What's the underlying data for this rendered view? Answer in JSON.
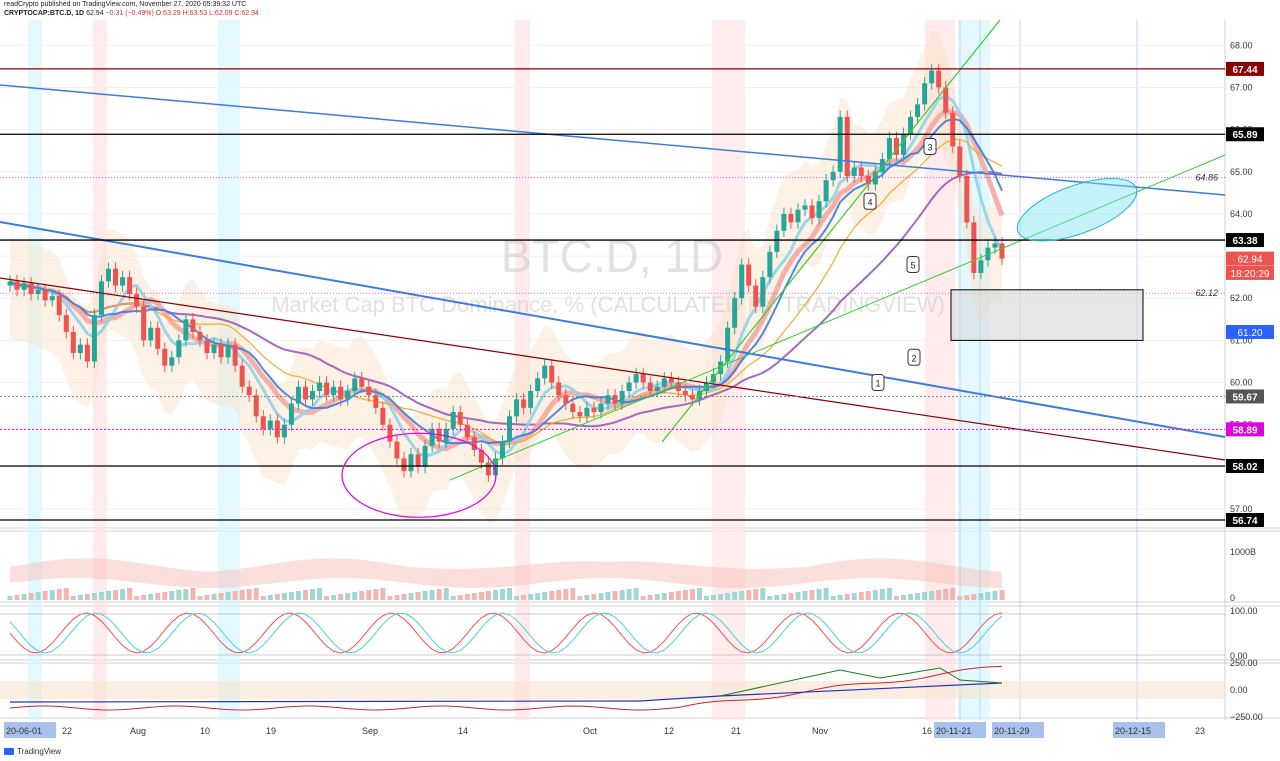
{
  "header": {
    "publisher_line": "readCrypto published on TradingView.com, November 27, 2020 05:39:32 UTC",
    "symbol": "CRYPTOCAP:BTC.D, 1D",
    "last": "62.94",
    "change": "−0.31 (−0.49%)",
    "ohlc": "O:63.29 H:63.53 L:62.09 C:62.94"
  },
  "watermark": {
    "title": "BTC.D, 1D",
    "subtitle": "Market Cap BTC Dominance, % (CALCULATED BY TRADINGVIEW)"
  },
  "colors": {
    "bull": "#26a69a",
    "bear": "#ef5350",
    "blue_line": "#3d7be0",
    "dark_red_line": "#8b0000",
    "green_line": "#32cd32",
    "magenta": "#e100e1",
    "orange": "#f5a623",
    "purple": "#9b59b6"
  },
  "chart_data": {
    "type": "candlestick",
    "y_range": [
      56.55,
      68.6
    ],
    "price_axis_ticks": [
      "68.00",
      "67.00",
      "66.00",
      "65.00",
      "64.00",
      "63.00",
      "62.00",
      "61.00",
      "60.00",
      "59.00",
      "58.00",
      "57.00"
    ],
    "x_axis_labels": [
      "20-06-01",
      "22",
      "Aug",
      "10",
      "19",
      "Sep",
      "14",
      "Oct",
      "12",
      "21",
      "Nov",
      "16",
      "20-11-21",
      "20-11-29",
      "20-12-15",
      "23"
    ],
    "highlighted_x_labels": [
      "20-06-01",
      "20-11-21",
      "20-11-29",
      "20-12-15"
    ],
    "horizontal_levels": [
      {
        "label": "67.44",
        "value": 67.44,
        "color": "#8b0000",
        "style": "solid"
      },
      {
        "label": "65.89",
        "value": 65.89,
        "color": "#000000",
        "style": "solid"
      },
      {
        "label": "63.38",
        "value": 63.38,
        "color": "#000000",
        "style": "solid"
      },
      {
        "label": "59.67",
        "value": 59.67,
        "color": "#888888",
        "style": "dotted"
      },
      {
        "label": "58.89",
        "value": 58.89,
        "color": "#e100e1",
        "style": "dotted"
      },
      {
        "label": "58.02",
        "value": 58.02,
        "color": "#000000",
        "style": "solid"
      },
      {
        "label": "56.74",
        "value": 56.74,
        "color": "#000000",
        "style": "solid"
      }
    ],
    "line_labels": [
      {
        "label": "64.86",
        "value": 64.86
      },
      {
        "label": "62.12",
        "value": 62.12
      }
    ],
    "price_badges": [
      {
        "label": "62.94",
        "value": 62.94,
        "color": "#ef5350"
      },
      {
        "label": "18:20:29",
        "value": 62.6,
        "color": "#ef5350"
      },
      {
        "label": "61.20",
        "value": 61.2,
        "color": "#2962ff"
      }
    ],
    "wave_labels": [
      "1",
      "2",
      "3",
      "4",
      "5"
    ],
    "volume_panel": {
      "tick_labels": [
        "1000B",
        "0"
      ]
    },
    "oscillator_panel": {
      "tick_labels": [
        "100.00",
        "0.00"
      ]
    },
    "momentum_panel": {
      "tick_labels": [
        "250.00",
        "0.00",
        "−250.00"
      ]
    },
    "candles": [
      [
        62.3,
        62.4
      ],
      [
        62.4,
        62.2
      ],
      [
        62.2,
        62.35
      ],
      [
        62.35,
        62.1
      ],
      [
        62.1,
        62.2
      ],
      [
        62.2,
        61.95
      ],
      [
        61.95,
        62.05
      ],
      [
        62.05,
        61.6
      ],
      [
        61.6,
        61.2
      ],
      [
        61.2,
        60.7
      ],
      [
        60.7,
        60.9
      ],
      [
        60.9,
        60.5
      ],
      [
        60.5,
        61.6
      ],
      [
        61.6,
        62.4
      ],
      [
        62.4,
        62.7
      ],
      [
        62.7,
        62.3
      ],
      [
        62.3,
        62.5
      ],
      [
        62.5,
        62.1
      ],
      [
        62.1,
        61.8
      ],
      [
        61.8,
        61.0
      ],
      [
        61.0,
        61.3
      ],
      [
        61.3,
        60.8
      ],
      [
        60.8,
        60.4
      ],
      [
        60.4,
        60.6
      ],
      [
        60.6,
        61.0
      ],
      [
        61.0,
        61.5
      ],
      [
        61.5,
        61.2
      ],
      [
        61.2,
        61.0
      ],
      [
        61.0,
        60.7
      ],
      [
        60.7,
        60.9
      ],
      [
        60.9,
        60.6
      ],
      [
        60.6,
        60.9
      ],
      [
        60.9,
        60.4
      ],
      [
        60.4,
        59.9
      ],
      [
        59.9,
        59.7
      ],
      [
        59.7,
        59.2
      ],
      [
        59.2,
        58.9
      ],
      [
        58.9,
        59.1
      ],
      [
        59.1,
        58.7
      ],
      [
        58.7,
        59.0
      ],
      [
        59.0,
        59.5
      ],
      [
        59.5,
        59.9
      ],
      [
        59.9,
        59.6
      ],
      [
        59.6,
        59.8
      ],
      [
        59.8,
        60.0
      ],
      [
        60.0,
        59.7
      ],
      [
        59.7,
        59.9
      ],
      [
        59.9,
        59.6
      ],
      [
        59.6,
        59.8
      ],
      [
        59.8,
        60.1
      ],
      [
        60.1,
        59.9
      ],
      [
        59.9,
        59.7
      ],
      [
        59.7,
        59.4
      ],
      [
        59.4,
        59.0
      ],
      [
        59.0,
        58.6
      ],
      [
        58.6,
        58.2
      ],
      [
        58.2,
        57.9
      ],
      [
        57.9,
        58.3
      ],
      [
        58.3,
        58.0
      ],
      [
        58.0,
        58.5
      ],
      [
        58.5,
        58.9
      ],
      [
        58.9,
        58.6
      ],
      [
        58.6,
        58.9
      ],
      [
        58.9,
        59.3
      ],
      [
        59.3,
        59.0
      ],
      [
        59.0,
        58.7
      ],
      [
        58.7,
        58.4
      ],
      [
        58.4,
        58.1
      ],
      [
        58.1,
        57.8
      ],
      [
        57.8,
        58.2
      ],
      [
        58.2,
        58.6
      ],
      [
        58.6,
        59.2
      ],
      [
        59.2,
        59.6
      ],
      [
        59.6,
        59.4
      ],
      [
        59.4,
        59.8
      ],
      [
        59.8,
        60.1
      ],
      [
        60.1,
        60.4
      ],
      [
        60.4,
        60.0
      ],
      [
        60.0,
        59.7
      ],
      [
        59.7,
        59.5
      ],
      [
        59.5,
        59.3
      ],
      [
        59.3,
        59.2
      ],
      [
        59.2,
        59.4
      ],
      [
        59.4,
        59.3
      ],
      [
        59.3,
        59.5
      ],
      [
        59.5,
        59.7
      ],
      [
        59.7,
        59.5
      ],
      [
        59.5,
        59.8
      ],
      [
        59.8,
        60.0
      ],
      [
        60.0,
        60.2
      ],
      [
        60.2,
        60.0
      ],
      [
        60.0,
        59.8
      ],
      [
        59.8,
        59.9
      ],
      [
        59.9,
        60.1
      ],
      [
        60.1,
        60.0
      ],
      [
        60.0,
        59.8
      ],
      [
        59.8,
        59.7
      ],
      [
        59.7,
        59.6
      ],
      [
        59.6,
        59.8
      ],
      [
        59.8,
        60.0
      ],
      [
        60.0,
        60.2
      ],
      [
        60.2,
        60.5
      ],
      [
        60.5,
        61.3
      ],
      [
        61.3,
        62.0
      ],
      [
        62.0,
        62.8
      ],
      [
        62.8,
        62.3
      ],
      [
        62.3,
        61.8
      ],
      [
        61.8,
        62.5
      ],
      [
        62.5,
        63.1
      ],
      [
        63.1,
        63.6
      ],
      [
        63.6,
        64.0
      ],
      [
        64.0,
        63.8
      ],
      [
        63.8,
        64.1
      ],
      [
        64.1,
        64.2
      ],
      [
        64.2,
        63.9
      ],
      [
        63.9,
        64.3
      ],
      [
        64.3,
        64.8
      ],
      [
        64.8,
        65.0
      ],
      [
        65.0,
        66.3
      ],
      [
        66.3,
        64.9
      ],
      [
        64.9,
        65.1
      ],
      [
        65.1,
        64.9
      ],
      [
        64.9,
        64.7
      ],
      [
        64.7,
        65.0
      ],
      [
        65.0,
        65.3
      ],
      [
        65.3,
        65.8
      ],
      [
        65.8,
        65.4
      ],
      [
        65.4,
        65.9
      ],
      [
        65.9,
        66.3
      ],
      [
        66.3,
        66.6
      ],
      [
        66.6,
        67.1
      ],
      [
        67.1,
        67.4
      ],
      [
        67.4,
        67.0
      ],
      [
        67.0,
        66.4
      ],
      [
        66.4,
        65.6
      ],
      [
        65.6,
        64.9
      ],
      [
        64.9,
        63.8
      ],
      [
        63.8,
        62.6
      ],
      [
        62.6,
        62.9
      ],
      [
        62.9,
        63.2
      ],
      [
        63.2,
        63.3
      ],
      [
        63.3,
        62.94
      ]
    ]
  }
}
